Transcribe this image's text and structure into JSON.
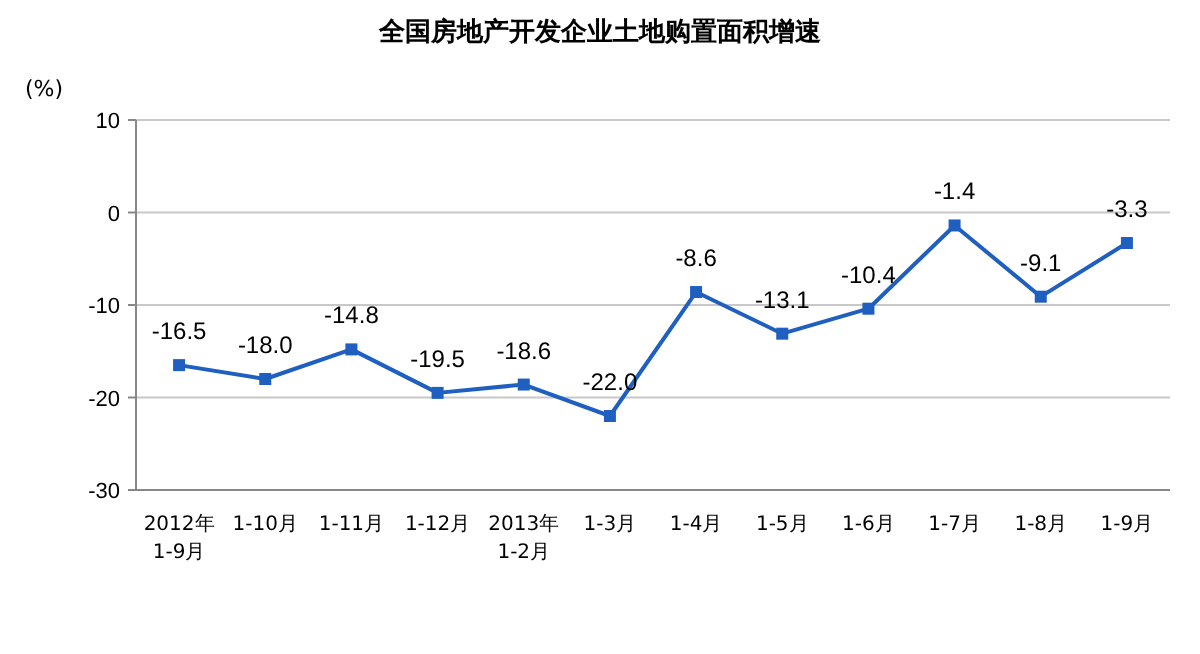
{
  "chart_data": {
    "type": "line",
    "title": "全国房地产开发企业土地购置面积增速",
    "ylabel": "(%)",
    "categories": [
      "2012年\n1-9月",
      "1-10月",
      "1-11月",
      "1-12月",
      "2013年\n1-2月",
      "1-3月",
      "1-4月",
      "1-5月",
      "1-6月",
      "1-7月",
      "1-8月",
      "1-9月"
    ],
    "series": [
      {
        "color": "#1f5fc0",
        "values": [
          -16.5,
          -18.0,
          -14.8,
          -19.5,
          -18.6,
          -22.0,
          -8.6,
          -13.1,
          -10.4,
          -1.4,
          -9.1,
          -3.3
        ],
        "value_labels": [
          "-16.5",
          "-18.0",
          "-14.8",
          "-19.5",
          "-18.6",
          "-22.0",
          "-8.6",
          "-13.1",
          "-10.4",
          "-1.4",
          "-9.1",
          "-3.3"
        ]
      }
    ],
    "ylim": [
      -30,
      10
    ],
    "yticks": [
      -30,
      -20,
      -10,
      0,
      10
    ],
    "grid": "y",
    "marker": "square",
    "line_style": "solid"
  }
}
